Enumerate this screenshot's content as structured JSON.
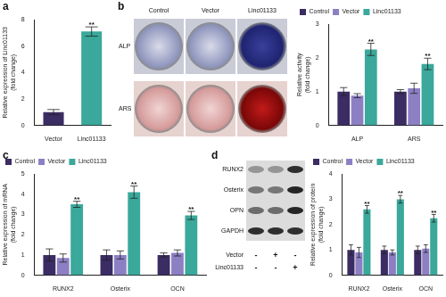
{
  "chart_data": [
    {
      "panel": "a",
      "type": "bar",
      "y_label": "Relative expression of Linc01133 (fold change)",
      "categories": [
        "Vector",
        "Linc01133"
      ],
      "values": [
        1.0,
        7.1
      ],
      "errors": [
        0.2,
        0.35
      ],
      "significance": [
        null,
        "**"
      ],
      "colors": [
        "#3b2c63",
        "#3aa89a"
      ],
      "ylim": [
        0,
        8
      ],
      "yticks": [
        0,
        2,
        4,
        6,
        8
      ],
      "grid": false
    },
    {
      "panel": "b",
      "type": "bar",
      "y_label": "Relative activity (fold change)",
      "categories": [
        "ALP",
        "ARS"
      ],
      "series": [
        {
          "name": "Control",
          "color": "#3b2c63",
          "values": [
            1.0,
            1.0
          ],
          "errors": [
            0.12,
            0.06
          ]
        },
        {
          "name": "Vector",
          "color": "#8d7fc4",
          "values": [
            0.88,
            1.1
          ],
          "errors": [
            0.06,
            0.15
          ]
        },
        {
          "name": "Linc01133",
          "color": "#3aa89a",
          "values": [
            2.25,
            1.82
          ],
          "errors": [
            0.18,
            0.17
          ],
          "significance": [
            "**",
            "**"
          ]
        }
      ],
      "ylim": [
        0,
        3
      ],
      "yticks": [
        0,
        1,
        2,
        3
      ],
      "grid": false,
      "legend": "upper left"
    },
    {
      "panel": "c",
      "type": "bar",
      "y_label": "Relative expression of mRNA (fold change)",
      "categories": [
        "RUNX2",
        "Osterix",
        "OCN"
      ],
      "series": [
        {
          "name": "Control",
          "color": "#3b2c63",
          "values": [
            1.0,
            1.0,
            1.0
          ],
          "errors": [
            0.3,
            0.25,
            0.1
          ]
        },
        {
          "name": "Vector",
          "color": "#8d7fc4",
          "values": [
            0.85,
            1.0,
            1.1
          ],
          "errors": [
            0.2,
            0.2,
            0.15
          ]
        },
        {
          "name": "Linc01133",
          "color": "#3aa89a",
          "values": [
            3.5,
            4.1,
            2.95
          ],
          "errors": [
            0.15,
            0.3,
            0.2
          ],
          "significance": [
            "**",
            "**",
            "**"
          ]
        }
      ],
      "ylim": [
        0,
        5
      ],
      "yticks": [
        0,
        1,
        2,
        3,
        4,
        5
      ],
      "grid": false,
      "legend": "upper left"
    },
    {
      "panel": "d",
      "type": "bar",
      "y_label": "Relative expression of protein (fold change)",
      "categories": [
        "RUNX2",
        "Osterix",
        "OCN"
      ],
      "series": [
        {
          "name": "Control",
          "color": "#3b2c63",
          "values": [
            1.0,
            1.0,
            1.0
          ],
          "errors": [
            0.2,
            0.15,
            0.15
          ]
        },
        {
          "name": "Vector",
          "color": "#8d7fc4",
          "values": [
            0.9,
            0.9,
            1.05
          ],
          "errors": [
            0.2,
            0.1,
            0.15
          ]
        },
        {
          "name": "Linc01133",
          "color": "#3aa89a",
          "values": [
            2.6,
            3.0,
            2.25
          ],
          "errors": [
            0.15,
            0.15,
            0.15
          ],
          "significance": [
            "**",
            "**",
            "**"
          ]
        }
      ],
      "ylim": [
        0,
        4
      ],
      "yticks": [
        0,
        1,
        2,
        3,
        4
      ],
      "grid": false,
      "legend": "upper left"
    }
  ],
  "images": {
    "b": {
      "columns": [
        "Control",
        "Vector",
        "Linc01133"
      ],
      "rows": [
        "ALP",
        "ARS"
      ]
    },
    "d": {
      "rows": [
        "RUNX2",
        "Osterix",
        "OPN",
        "GAPDH"
      ],
      "conditions": [
        {
          "name": "Vector",
          "marks": [
            "-",
            "+",
            "-"
          ]
        },
        {
          "name": "Linc01133",
          "marks": [
            "-",
            "-",
            "+"
          ]
        }
      ]
    }
  }
}
